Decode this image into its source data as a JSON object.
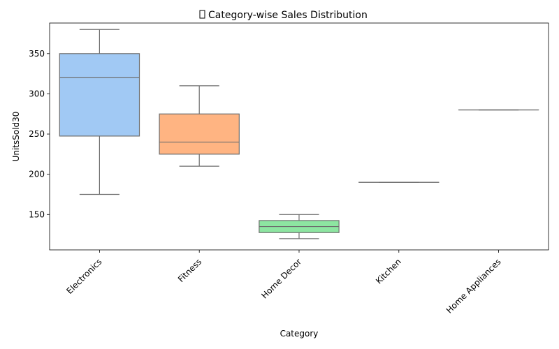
{
  "chart_data": {
    "type": "box",
    "title": "Category-wise Sales Distribution",
    "title_icon": "chart-emoji-icon",
    "title_icon_glyph": "▯",
    "xlabel": "Category",
    "ylabel": "UnitsSold30",
    "categories": [
      "Electronics",
      "Fitness",
      "Home Decor",
      "Kitchen",
      "Home Appliances"
    ],
    "ylim": [
      106,
      388
    ],
    "yticks": [
      150,
      200,
      250,
      300,
      350
    ],
    "grid": false,
    "legend": "none",
    "boxes": [
      {
        "category": "Electronics",
        "whisker_low": 175,
        "q1": 247.5,
        "median": 320,
        "q3": 350,
        "whisker_high": 380,
        "color": "#a1c9f4"
      },
      {
        "category": "Fitness",
        "whisker_low": 210,
        "q1": 225,
        "median": 240,
        "q3": 275,
        "whisker_high": 310,
        "color": "#ffb482"
      },
      {
        "category": "Home Decor",
        "whisker_low": 120,
        "q1": 127.5,
        "median": 135,
        "q3": 142.5,
        "whisker_high": 150,
        "color": "#8de5a1"
      },
      {
        "category": "Kitchen",
        "whisker_low": 190,
        "q1": 190,
        "median": 190,
        "q3": 190,
        "whisker_high": 190,
        "color": "#ff9f9b"
      },
      {
        "category": "Home Appliances",
        "whisker_low": 280,
        "q1": 280,
        "median": 280,
        "q3": 280,
        "whisker_high": 280,
        "color": "#d0bbff"
      }
    ]
  }
}
